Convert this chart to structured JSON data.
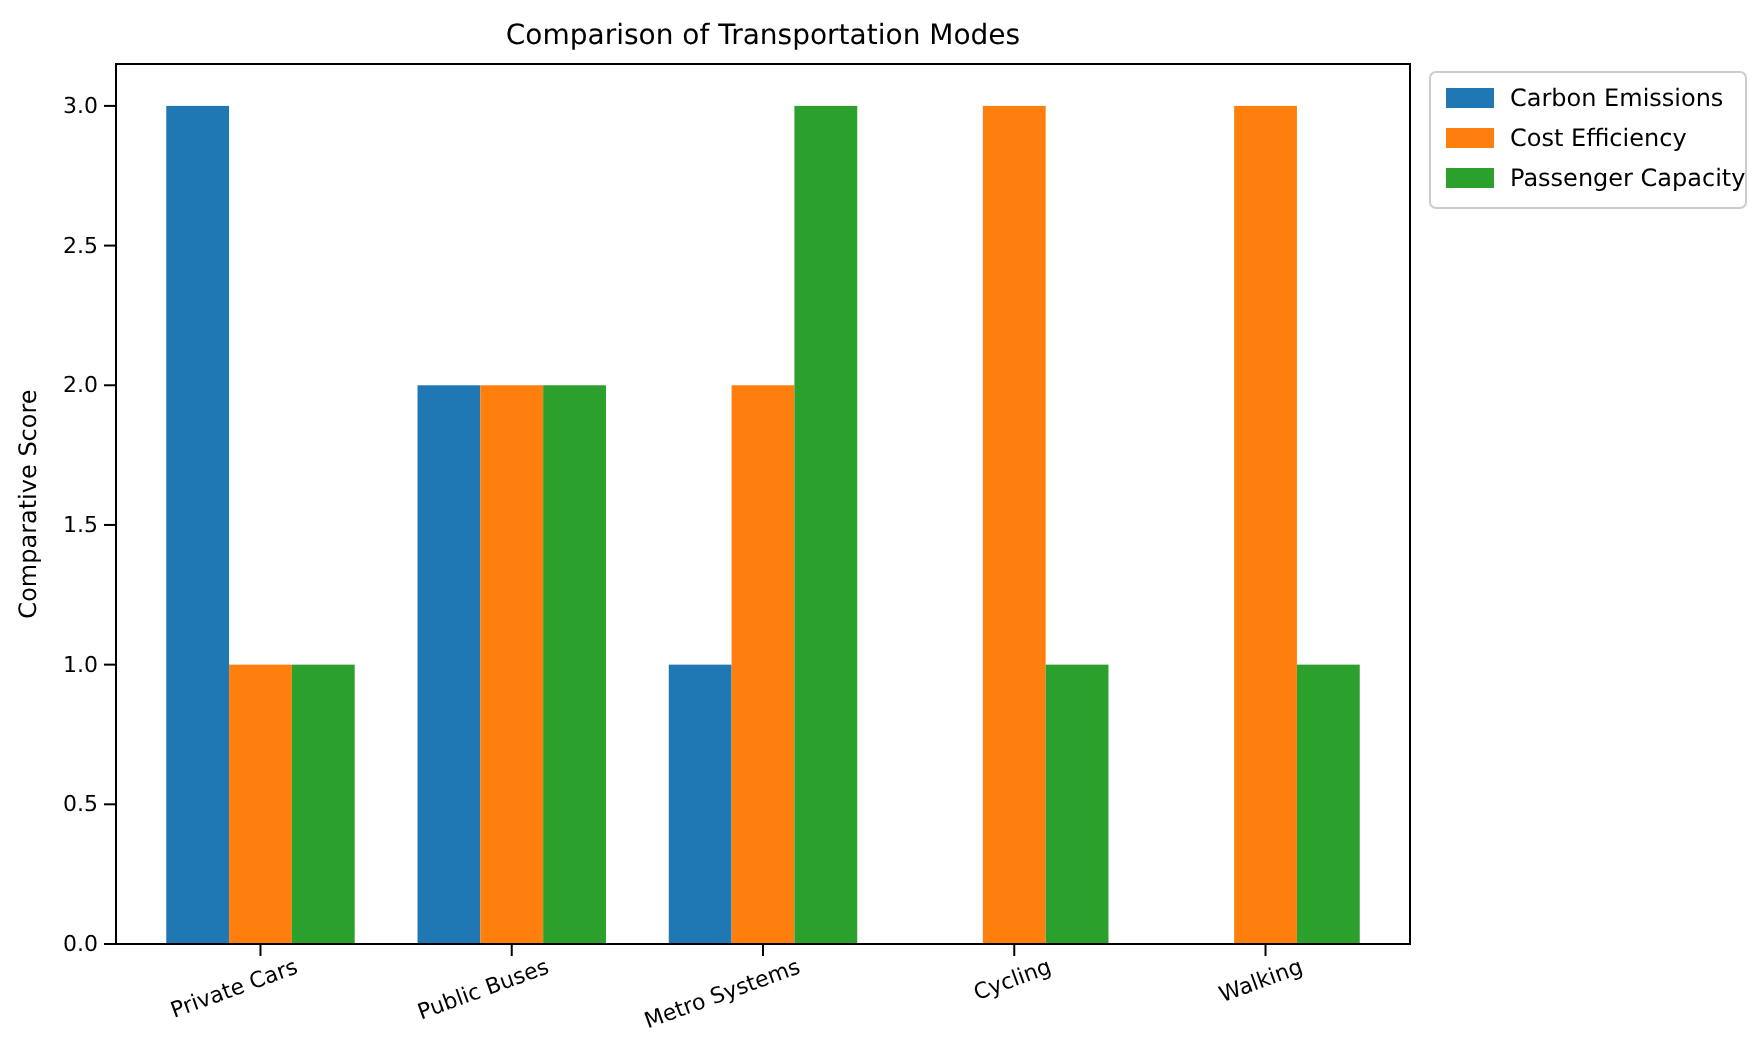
{
  "chart_data": {
    "type": "bar",
    "title": "Comparison of Transportation Modes",
    "ylabel": "Comparative Score",
    "categories": [
      "Private Cars",
      "Public Buses",
      "Metro Systems",
      "Cycling",
      "Walking"
    ],
    "series": [
      {
        "name": "Carbon Emissions",
        "color": "#1f77b4",
        "values": [
          3,
          2,
          1,
          0,
          0
        ]
      },
      {
        "name": "Cost Efficiency",
        "color": "#ff7f0e",
        "values": [
          1,
          2,
          2,
          3,
          3
        ]
      },
      {
        "name": "Passenger Capacity",
        "color": "#2ca02c",
        "values": [
          1,
          2,
          3,
          1,
          1
        ]
      }
    ],
    "ylim": [
      0,
      3.15
    ],
    "yticks": [
      {
        "value": 0,
        "label": "0.0"
      },
      {
        "value": 0.5,
        "label": "0.5"
      },
      {
        "value": 1,
        "label": "1.0"
      },
      {
        "value": 1.5,
        "label": "1.5"
      },
      {
        "value": 2,
        "label": "2.0"
      },
      {
        "value": 2.5,
        "label": "2.5"
      },
      {
        "value": 3,
        "label": "3.0"
      }
    ],
    "grid": false,
    "legend": "top right"
  }
}
